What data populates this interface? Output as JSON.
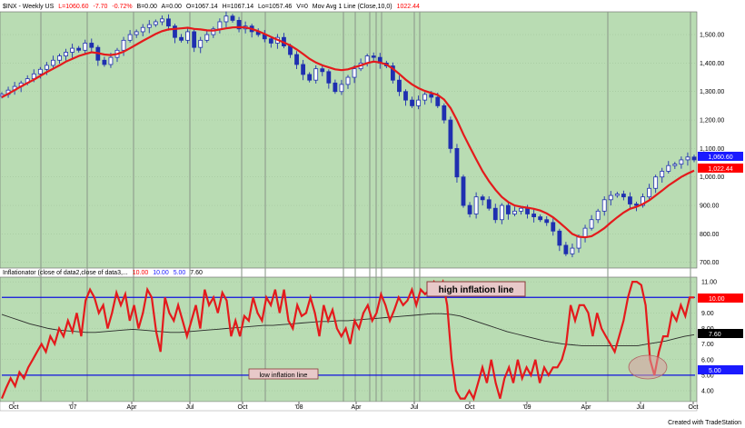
{
  "chart_data": [
    {
      "type": "candlestick",
      "header": {
        "symbol": "$INX - Weekly  US",
        "last": "L=1060.60",
        "change": "-7.70",
        "change_pct": "-0.72%",
        "bid": "B=0.00",
        "ask": "A=0.00",
        "open": "O=1067.14",
        "high": "H=1067.14",
        "low": "Lo=1057.46",
        "volume": "V=0",
        "study": "Mov Avg 1 Line (Close,10,0)",
        "study_value": "1022.44"
      },
      "y_ticks": [
        "1,500.00",
        "1,400.00",
        "1,300.00",
        "1,200.00",
        "1,100.00",
        "1,000.00",
        "900.00",
        "800.00",
        "700.00"
      ],
      "ylim": [
        680,
        1580
      ],
      "price_label": "1,060.60",
      "ma_label": "1,022.44",
      "close_approx": [
        1290,
        1305,
        1318,
        1330,
        1345,
        1362,
        1378,
        1392,
        1410,
        1425,
        1438,
        1452,
        1445,
        1470,
        1455,
        1410,
        1395,
        1420,
        1445,
        1480,
        1500,
        1510,
        1525,
        1535,
        1545,
        1555,
        1530,
        1490,
        1480,
        1510,
        1455,
        1480,
        1500,
        1520,
        1545,
        1565,
        1550,
        1520,
        1530,
        1510,
        1500,
        1485,
        1470,
        1490,
        1460,
        1430,
        1395,
        1360,
        1340,
        1380,
        1370,
        1330,
        1300,
        1325,
        1350,
        1380,
        1400,
        1425,
        1420,
        1400,
        1390,
        1340,
        1300,
        1270,
        1250,
        1270,
        1290,
        1280,
        1250,
        1200,
        1100,
        1000,
        900,
        870,
        930,
        920,
        890,
        850,
        900,
        870,
        880,
        890,
        870,
        860,
        850,
        840,
        810,
        760,
        730,
        750,
        790,
        820,
        850,
        880,
        920,
        935,
        940,
        930,
        905,
        900,
        930,
        960,
        1000,
        1020,
        1040,
        1045,
        1060,
        1070,
        1060
      ],
      "ma_approx": [
        1280,
        1292,
        1305,
        1318,
        1330,
        1342,
        1355,
        1368,
        1380,
        1392,
        1405,
        1415,
        1425,
        1432,
        1438,
        1435,
        1430,
        1428,
        1432,
        1440,
        1452,
        1465,
        1478,
        1490,
        1502,
        1512,
        1518,
        1520,
        1522,
        1524,
        1520,
        1518,
        1515,
        1514,
        1518,
        1522,
        1525,
        1526,
        1525,
        1520,
        1512,
        1502,
        1492,
        1482,
        1472,
        1462,
        1448,
        1432,
        1415,
        1402,
        1392,
        1385,
        1378,
        1375,
        1378,
        1385,
        1392,
        1400,
        1405,
        1402,
        1395,
        1380,
        1362,
        1342,
        1325,
        1312,
        1302,
        1295,
        1288,
        1272,
        1242,
        1200,
        1150,
        1105,
        1062,
        1020,
        985,
        955,
        930,
        912,
        900,
        895,
        892,
        888,
        882,
        872,
        858,
        840,
        820,
        800,
        790,
        788,
        792,
        805,
        820,
        840,
        858,
        875,
        888,
        895,
        905,
        918,
        935,
        952,
        970,
        985,
        1000,
        1012,
        1022
      ]
    },
    {
      "type": "line",
      "header": "Inflationator (close of data2,close of data3,...",
      "header_values": [
        "10.00",
        "10.00",
        "5.00",
        "7.60"
      ],
      "y_ticks": [
        "11.00",
        "10.00",
        "9.00",
        "8.00",
        "7.00",
        "6.00",
        "5.00",
        "4.00"
      ],
      "ylim": [
        3.3,
        11.3
      ],
      "value_labels": [
        "10.00",
        "7.60",
        "5.00"
      ],
      "reference_lines": [
        10,
        5
      ],
      "annotations": [
        "high inflation line",
        "low inflation line"
      ],
      "series": [
        {
          "values": [
            3.5,
            4.2,
            4.8,
            4.3,
            5.2,
            4.8,
            5.5,
            6.0,
            6.5,
            7.0,
            6.5,
            7.5,
            7.0,
            8.0,
            7.5,
            8.5,
            7.8,
            9.0,
            7.5,
            9.8,
            10.5,
            10.0,
            9.0,
            9.5,
            8.0,
            9.0,
            10.3,
            9.5,
            10.2,
            8.5,
            9.5,
            8.0,
            9.0,
            10.5,
            10.0,
            7.8,
            6.5,
            10.0,
            9.0,
            8.5,
            9.5,
            8.5,
            7.5,
            8.5,
            9.5,
            8.0,
            10.5,
            9.5,
            10.0,
            9.0,
            10.3,
            9.8,
            7.5,
            8.5,
            7.5,
            8.8,
            8.5,
            10.0,
            9.0,
            8.5,
            10.0,
            9.5,
            10.5,
            9.0,
            10.5,
            8.5,
            8.0,
            9.5,
            8.8,
            9.0,
            10.0,
            9.0,
            7.5,
            9.5,
            8.5,
            9.2,
            8.0,
            7.5,
            8.0,
            7.0,
            8.5,
            8.0,
            9.0,
            9.5,
            8.5,
            9.0,
            10.2,
            9.5,
            8.5,
            9.2,
            10.0,
            9.5,
            9.8,
            10.5,
            9.5,
            10.5,
            10.2,
            10.5,
            11.0,
            10.5,
            11.0,
            9.5,
            6.0,
            4.0,
            3.5,
            3.5,
            4.0,
            3.5,
            4.5,
            5.5,
            4.5,
            6.0,
            4.5,
            3.5,
            4.8,
            5.5,
            4.5,
            6.0,
            4.8,
            5.5,
            5.0,
            6.0,
            4.5,
            5.5,
            5.0,
            5.5,
            5.5,
            6.0,
            7.0,
            9.5,
            8.5,
            9.5,
            9.5,
            9.0,
            7.5,
            9.0,
            8.0,
            7.5,
            7.0,
            6.5,
            7.5,
            8.5,
            10.0,
            11.0,
            11.0,
            10.8,
            9.5,
            6.0,
            5.0,
            6.5,
            7.5,
            7.5,
            9.0,
            8.5,
            9.5,
            8.8,
            10.0,
            10.0
          ]
        },
        {
          "values": [
            8.9,
            8.7,
            8.5,
            8.3,
            8.15,
            8.0,
            7.9,
            7.85,
            7.8,
            7.75,
            7.75,
            7.8,
            7.85,
            7.9,
            7.95,
            7.9,
            7.85,
            7.8,
            7.75,
            7.75,
            7.8,
            7.85,
            7.9,
            7.95,
            8.0,
            8.05,
            8.1,
            8.15,
            8.2,
            8.2,
            8.25,
            8.3,
            8.35,
            8.4,
            8.45,
            8.45,
            8.5,
            8.5,
            8.55,
            8.6,
            8.65,
            8.7,
            8.75,
            8.8,
            8.85,
            8.9,
            8.95,
            8.95,
            8.9,
            8.8,
            8.6,
            8.4,
            8.2,
            8.0,
            7.8,
            7.65,
            7.5,
            7.35,
            7.2,
            7.1,
            7.0,
            6.95,
            6.9,
            6.9,
            6.9,
            6.9,
            6.9,
            6.9,
            6.9,
            7.0,
            7.1,
            7.2,
            7.35,
            7.5,
            7.6
          ]
        }
      ]
    }
  ],
  "x_ticks": [
    "Oct",
    "'07",
    "Apr",
    "Jul",
    "Oct",
    "'08",
    "Apr",
    "Jul",
    "Oct",
    "'09",
    "Apr",
    "Jul",
    "Oct"
  ],
  "credit": "Created with TradeStation",
  "colors": {
    "panel_bg": "#b9dcb3",
    "price_up": "#3b3bd6",
    "price_down": "#1f2fb0",
    "moving_average": "#e41a1c",
    "reference_line": "#1010e0",
    "inflationator": "#e41a1c",
    "inflationator_avg": "#2a2a2a",
    "ellipse": "#d9a0a0",
    "label_red": "#ff0000",
    "label_blue": "#1a1aff",
    "label_black": "#000000"
  }
}
